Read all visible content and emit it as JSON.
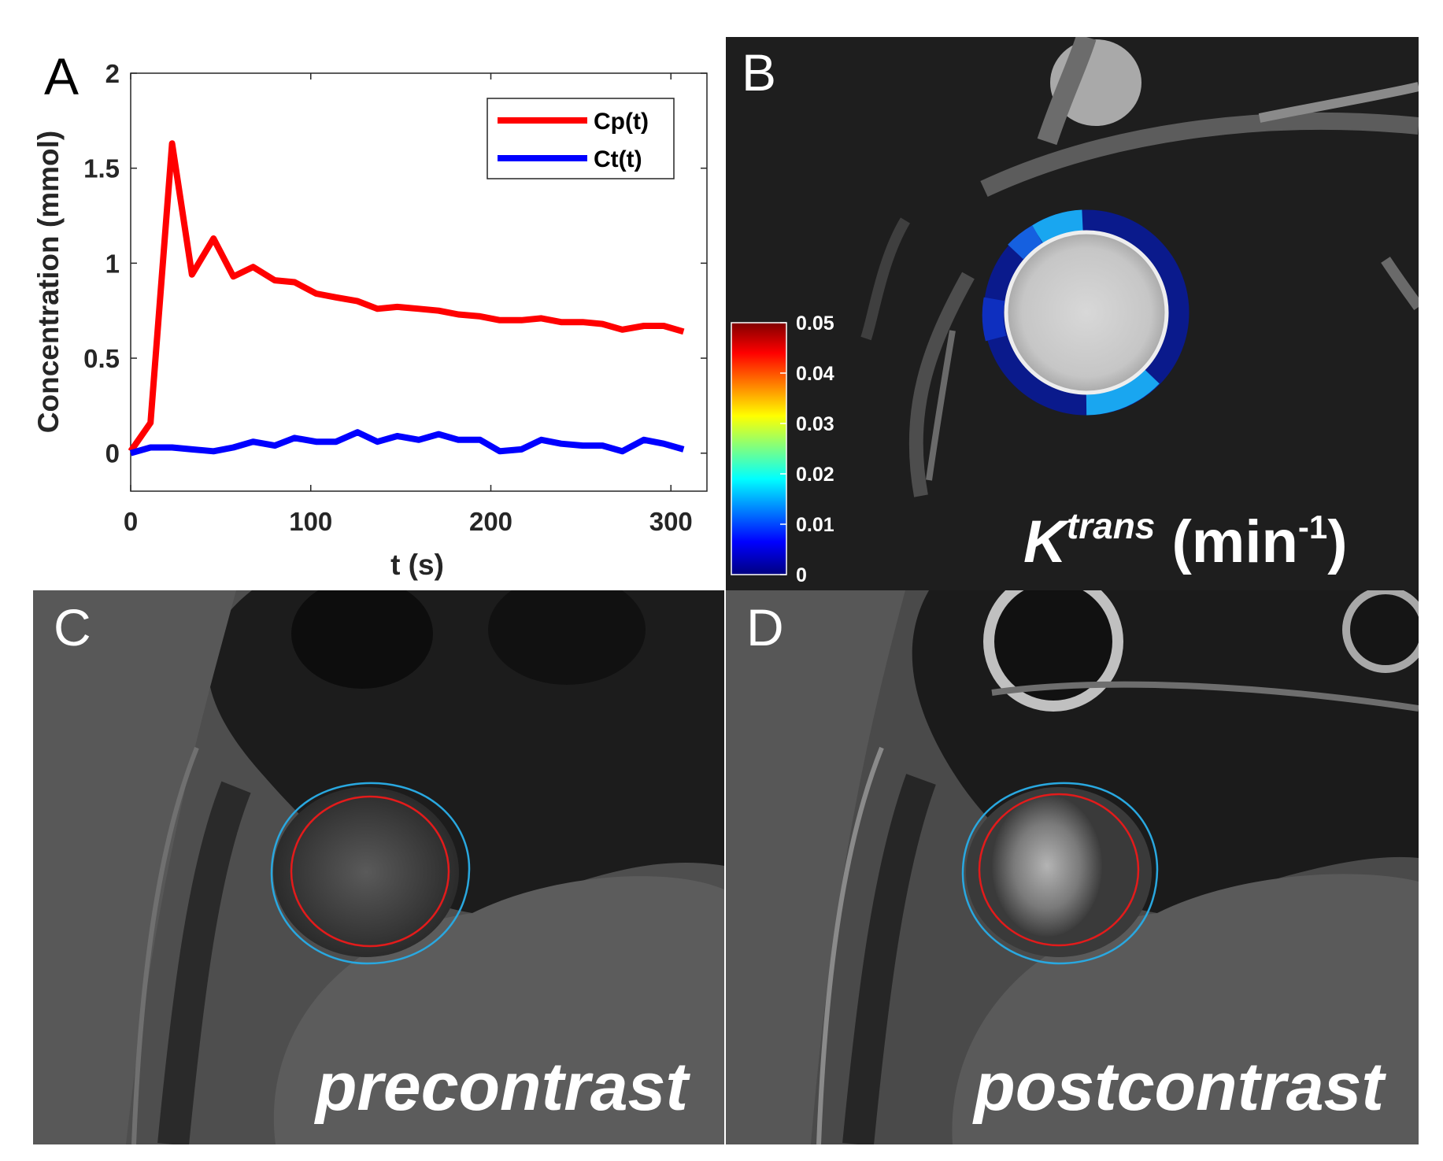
{
  "panels": {
    "a": {
      "letter": "A"
    },
    "b": {
      "letter": "B",
      "label_main": "K",
      "label_sup": "trans",
      "label_unit_open": " (min",
      "label_unit_sup": "-1",
      "label_unit_close": ")"
    },
    "c": {
      "letter": "C",
      "caption": "precontrast"
    },
    "d": {
      "letter": "D",
      "caption": "postcontrast"
    }
  },
  "colorbar": {
    "ticks": [
      "0.05",
      "0.04",
      "0.03",
      "0.02",
      "0.01",
      "0"
    ],
    "values": [
      0.05,
      0.04,
      0.03,
      0.02,
      0.01,
      0
    ]
  },
  "chart_data": {
    "type": "line",
    "title": "",
    "xlabel": "t (s)",
    "ylabel": "Concentration (mmol)",
    "xlim": [
      0,
      320
    ],
    "ylim": [
      -0.2,
      2
    ],
    "xticks": [
      0,
      100,
      200,
      300
    ],
    "yticks": [
      0,
      0.5,
      1,
      1.5,
      2
    ],
    "xtick_labels": [
      "0",
      "100",
      "200",
      "300"
    ],
    "ytick_labels": [
      "0",
      "0.5",
      "1",
      "1.5",
      "2"
    ],
    "legend_position": "top-right",
    "series": [
      {
        "name": "Cp(t)",
        "color": "#ff0000",
        "x": [
          0,
          11,
          23,
          34,
          46,
          57,
          68,
          80,
          91,
          103,
          114,
          126,
          137,
          148,
          160,
          171,
          182,
          194,
          205,
          217,
          228,
          239,
          251,
          262,
          273,
          285,
          296,
          307
        ],
        "y": [
          0.01,
          0.16,
          1.63,
          0.94,
          1.13,
          0.93,
          0.98,
          0.91,
          0.9,
          0.84,
          0.82,
          0.8,
          0.76,
          0.77,
          0.76,
          0.75,
          0.73,
          0.72,
          0.7,
          0.7,
          0.71,
          0.69,
          0.69,
          0.68,
          0.65,
          0.67,
          0.67,
          0.64
        ]
      },
      {
        "name": "Ct(t)",
        "color": "#0000ff",
        "x": [
          0,
          11,
          23,
          34,
          46,
          57,
          68,
          80,
          91,
          103,
          114,
          126,
          137,
          148,
          160,
          171,
          182,
          194,
          205,
          217,
          228,
          239,
          251,
          262,
          273,
          285,
          296,
          307
        ],
        "y": [
          0.0,
          0.03,
          0.03,
          0.02,
          0.01,
          0.03,
          0.06,
          0.04,
          0.08,
          0.06,
          0.06,
          0.11,
          0.06,
          0.09,
          0.07,
          0.1,
          0.07,
          0.07,
          0.01,
          0.02,
          0.07,
          0.05,
          0.04,
          0.04,
          0.01,
          0.07,
          0.05,
          0.02
        ]
      }
    ]
  },
  "colors": {
    "plasma_curve": "#ff0000",
    "tissue_curve": "#0000ff",
    "outer_wall_contour": "#29a8e0",
    "inner_lumen_contour": "#e31b1b",
    "ktrans_ring_high": "#19a6f0",
    "ktrans_ring_low": "#0a1a8c"
  }
}
